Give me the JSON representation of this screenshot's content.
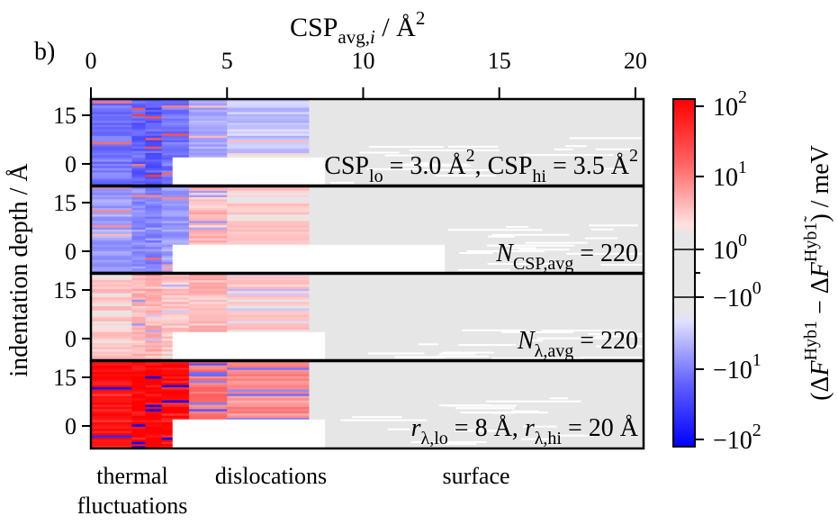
{
  "panel_label": "b)",
  "chart_data": {
    "type": "heatmap",
    "x_axis": {
      "label": "CSP",
      "label_sub": "avg,",
      "label_sub_italic": "i",
      "label_unit": " / Å",
      "label_unit_sup": "2",
      "position": "top",
      "range": [
        0,
        20.3
      ],
      "ticks": [
        0,
        5,
        10,
        15,
        20
      ],
      "tick_labels": [
        "0",
        "5",
        "10",
        "15",
        "20"
      ]
    },
    "y_axis": {
      "label": "indentation depth / Å",
      "range": [
        -5,
        20
      ],
      "ticks": [
        0,
        15
      ],
      "tick_labels": [
        "0",
        "15"
      ]
    },
    "colorbar": {
      "label": "(ΔF^Hyb1 − ΔF^Hyb1̃) / meV",
      "label_open": "(Δ",
      "label_F": "F",
      "label_sup1": "Hyb1",
      "label_minus": " − Δ",
      "label_F2": "F",
      "label_sup2": "Hyb1̃",
      "label_close": ") / meV",
      "scale": "symlog",
      "linthresh": 1,
      "range": [
        -100,
        100
      ],
      "ticks": [
        100,
        10,
        1,
        -1,
        -10,
        -100
      ],
      "tick_labels": [
        {
          "base": "10",
          "sup": "2"
        },
        {
          "base": "10",
          "sup": "1"
        },
        {
          "base": "10",
          "sup": "0"
        },
        {
          "base": "−10",
          "sup": "0"
        },
        {
          "base": "−10",
          "sup": "1"
        },
        {
          "base": "−10",
          "sup": "2"
        }
      ],
      "colors": {
        "positive": "#ff0000",
        "negative": "#0000ff",
        "zero": "#e6e6e6",
        "missing": "#ffffff"
      }
    },
    "panels": [
      {
        "id": "panel-1",
        "annotation_parts": [
          "CSP",
          "lo",
          " = 3.0 Å",
          "2",
          ", CSP",
          "hi",
          " = 3.5 Å",
          "2"
        ],
        "thermal": -12,
        "dislocation": -2,
        "surface_cut": 8.6,
        "boundary_col": 3.0
      },
      {
        "id": "panel-2",
        "annotation_parts": [
          "N",
          "CSP,avg",
          " = 220"
        ],
        "thermal": -5,
        "dislocation": 1.5,
        "surface_cut": 13.0,
        "boundary_col": 3.0
      },
      {
        "id": "panel-3",
        "annotation_parts": [
          "N",
          "λ,avg",
          " = 220"
        ],
        "thermal": 2,
        "dislocation": 1.5,
        "surface_cut": 8.6,
        "boundary_col": 3.0
      },
      {
        "id": "panel-4",
        "annotation_parts": [
          "r",
          "λ,lo",
          " = 8 Å, ",
          "r",
          "λ,hi",
          " = 20 Å"
        ],
        "thermal": 80,
        "dislocation": 6,
        "surface_cut": 8.6,
        "boundary_col": 3.0
      }
    ],
    "region_labels": [
      "thermal",
      "fluctuations",
      "dislocations",
      "surface"
    ]
  }
}
